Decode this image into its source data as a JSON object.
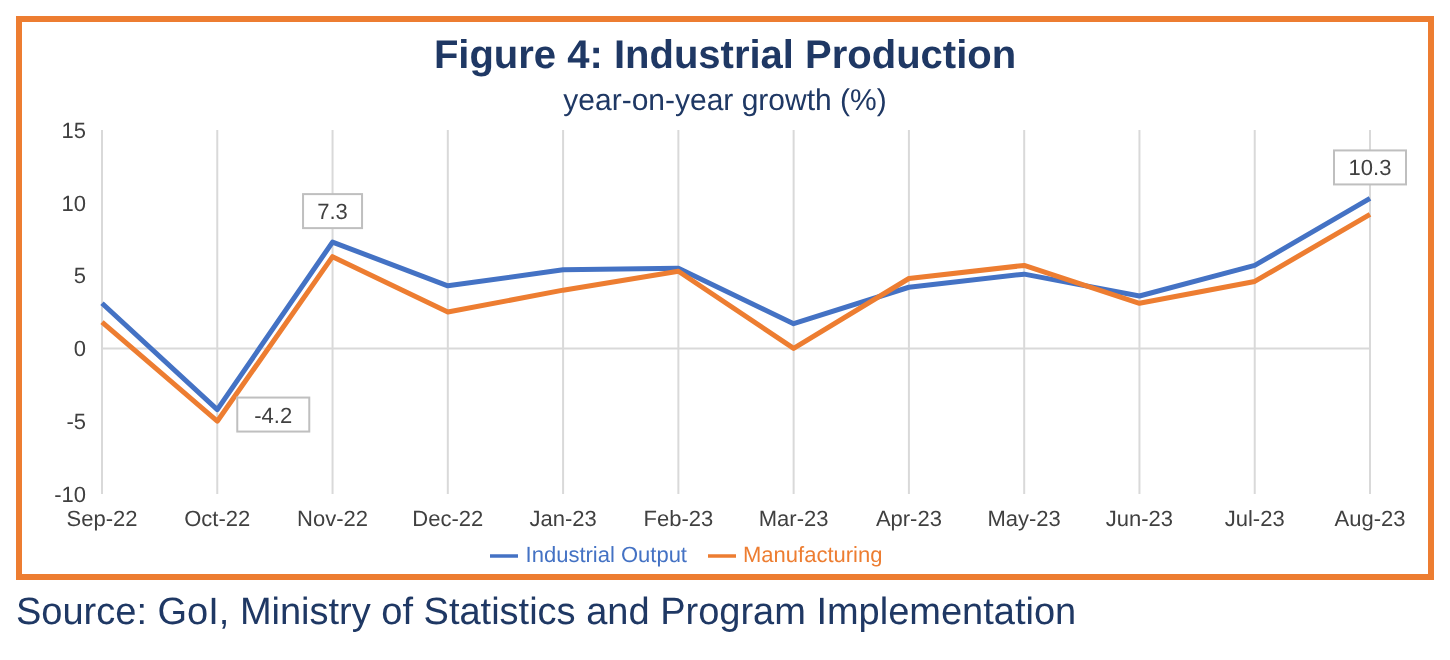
{
  "chart_data": {
    "type": "line",
    "title": "Figure 4: Industrial Production",
    "subtitle": "year-on-year growth (%)",
    "categories": [
      "Sep-22",
      "Oct-22",
      "Nov-22",
      "Dec-22",
      "Jan-23",
      "Feb-23",
      "Mar-23",
      "Apr-23",
      "May-23",
      "Jun-23",
      "Jul-23",
      "Aug-23"
    ],
    "series": [
      {
        "name": "Industrial Output",
        "color": "#4472c4",
        "values": [
          3.1,
          -4.2,
          7.3,
          4.3,
          5.4,
          5.5,
          1.7,
          4.2,
          5.1,
          3.6,
          5.7,
          10.3
        ],
        "value_labels": [
          null,
          "-4.2",
          "7.3",
          null,
          null,
          null,
          null,
          null,
          null,
          null,
          null,
          "10.3"
        ]
      },
      {
        "name": "Manufacturing",
        "color": "#ed7d31",
        "values": [
          1.8,
          -5.0,
          6.3,
          2.5,
          4.0,
          5.3,
          0.0,
          4.8,
          5.7,
          3.1,
          4.6,
          9.2
        ]
      }
    ],
    "ylim": [
      -10,
      15
    ],
    "yticks": [
      -10,
      -5,
      0,
      5,
      10,
      15
    ],
    "grid": "x",
    "ref_lines": [
      {
        "axis": "y",
        "value": 0,
        "color": "#d9d9d9"
      }
    ],
    "legend": "bottom",
    "marker": "none",
    "line_style": "solid",
    "annotations": [
      "Source: GoI, Ministry of Statistics and Program Implementation"
    ]
  }
}
